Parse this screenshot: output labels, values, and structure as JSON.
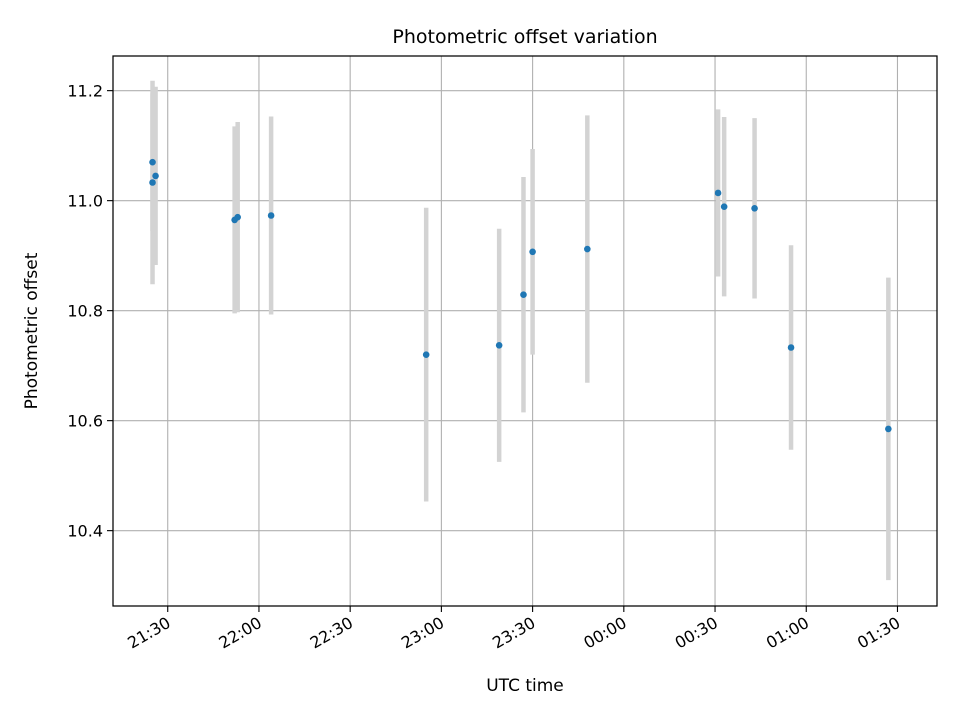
{
  "chart_data": {
    "type": "scatter",
    "title": "Photometric offset variation",
    "xlabel": "UTC time",
    "ylabel": "Photometric offset",
    "x_axis": {
      "kind": "time",
      "range": [
        "21:12",
        "01:43"
      ],
      "ticks": [
        "21:30",
        "22:00",
        "22:30",
        "23:00",
        "23:30",
        "00:00",
        "00:30",
        "01:00",
        "01:30"
      ],
      "tick_label_rotation": "30 degrees"
    },
    "y_axis": {
      "range": [
        10.263,
        11.263
      ],
      "ticks": [
        "10.4",
        "10.6",
        "10.8",
        "11.0",
        "11.2"
      ]
    },
    "grid": true,
    "legend": "none",
    "colors": {
      "marker": "#1f77b4",
      "errorbar": "#d3d3d3",
      "grid": "#b0b0b0"
    },
    "series": [
      {
        "points": [
          {
            "x": "21:25",
            "y": 11.07,
            "yerr": 0.125
          },
          {
            "x": "21:25",
            "y": 11.033,
            "yerr": 0.185
          },
          {
            "x": "21:26",
            "y": 11.045,
            "yerr": 0.162
          },
          {
            "x": "21:52",
            "y": 10.965,
            "yerr": 0.17
          },
          {
            "x": "21:53",
            "y": 10.97,
            "yerr": 0.173
          },
          {
            "x": "22:04",
            "y": 10.973,
            "yerr": 0.18
          },
          {
            "x": "22:55",
            "y": 10.72,
            "yerr": 0.267
          },
          {
            "x": "23:19",
            "y": 10.737,
            "yerr": 0.212
          },
          {
            "x": "23:27",
            "y": 10.829,
            "yerr": 0.214
          },
          {
            "x": "23:30",
            "y": 10.907,
            "yerr": 0.187
          },
          {
            "x": "23:48",
            "y": 10.912,
            "yerr": 0.243
          },
          {
            "x": "00:31",
            "y": 11.014,
            "yerr": 0.152
          },
          {
            "x": "00:33",
            "y": 10.989,
            "yerr": 0.163
          },
          {
            "x": "00:43",
            "y": 10.986,
            "yerr": 0.164
          },
          {
            "x": "00:55",
            "y": 10.733,
            "yerr": 0.186
          },
          {
            "x": "01:27",
            "y": 10.585,
            "yerr": 0.275
          }
        ]
      }
    ]
  }
}
